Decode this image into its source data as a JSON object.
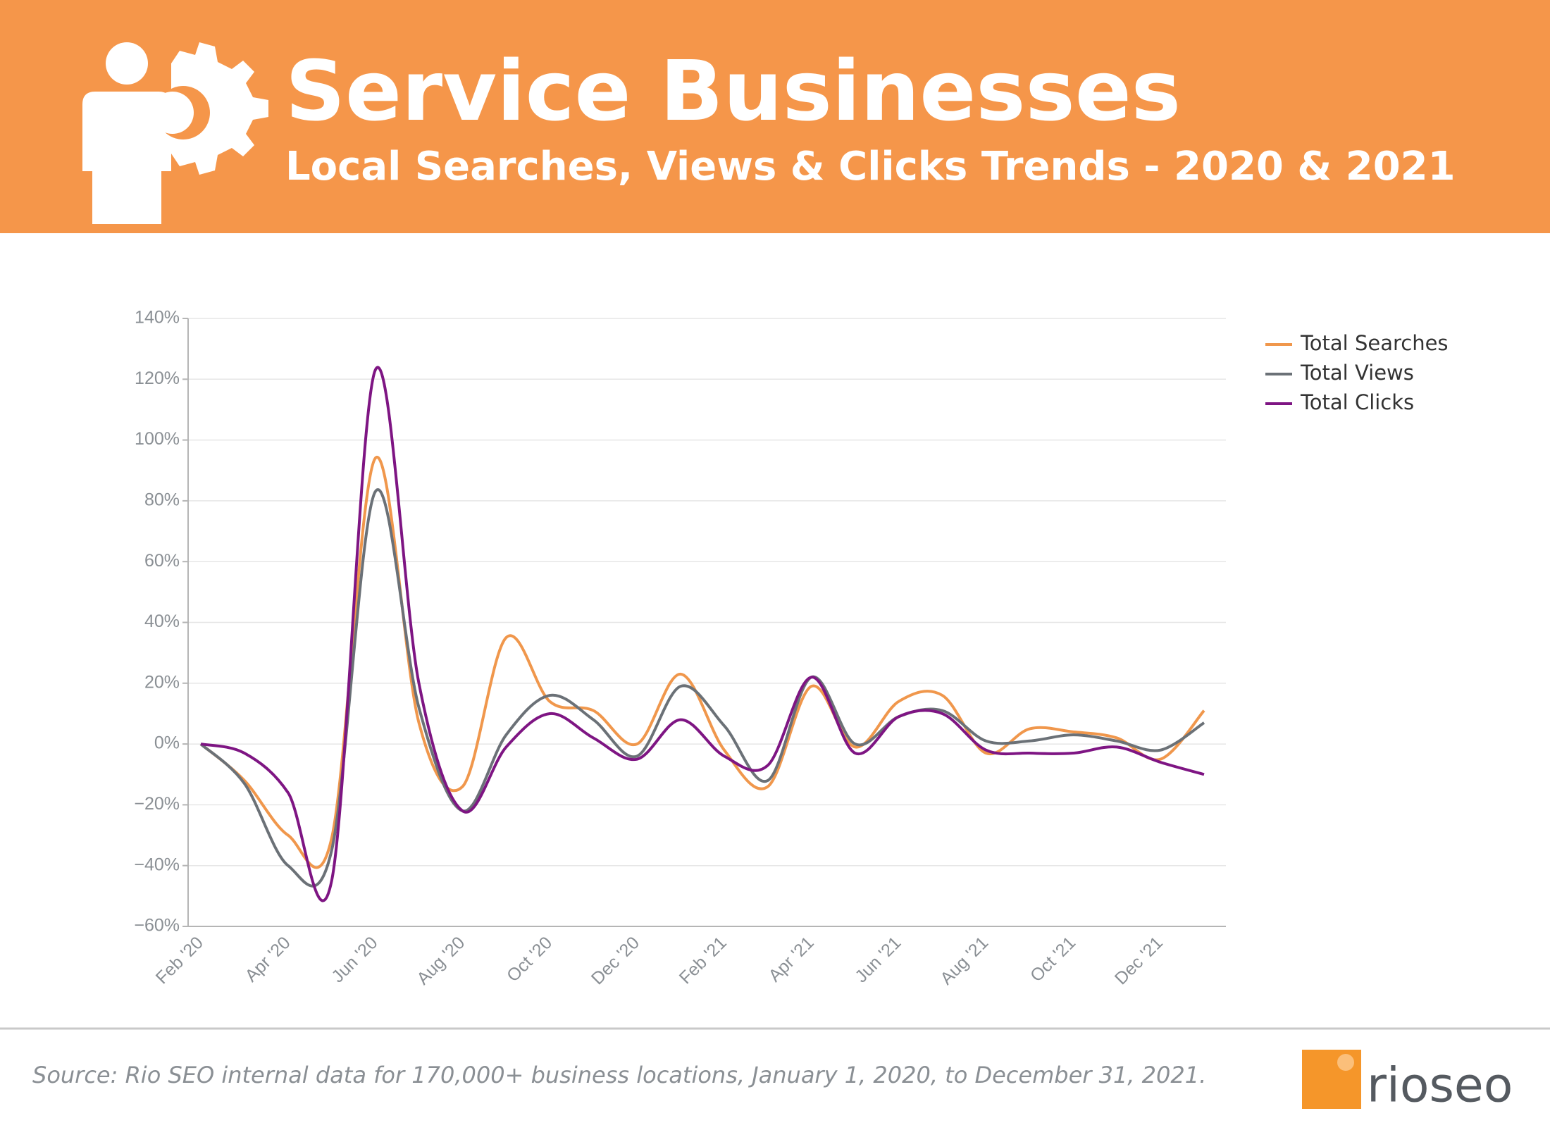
{
  "chart_data": {
    "type": "line",
    "title": "Service Businesses",
    "subtitle": "Local Searches, Views & Clicks Trends - 2020 & 2021",
    "source": "Source: Rio SEO internal data for 170,000+ business locations, January 1, 2020, to December 31, 2021.",
    "categories": [
      "Feb '20",
      null,
      "Apr '20",
      null,
      "Jun '20",
      null,
      "Aug '20",
      null,
      "Oct '20",
      null,
      "Dec '20",
      null,
      "Feb '21",
      null,
      "Apr '21",
      null,
      "Jun '21",
      null,
      "Aug '21",
      null,
      "Oct '21",
      null,
      "Dec '21",
      null
    ],
    "series": [
      {
        "name": "Total Searches",
        "color": "#f0974c",
        "values": [
          0,
          -12,
          -30,
          -31,
          94,
          7,
          -14,
          35,
          14,
          11,
          0,
          23,
          -2,
          -14,
          19,
          -1,
          14,
          16,
          -3,
          5,
          4,
          2,
          -5,
          11
        ]
      },
      {
        "name": "Total Views",
        "color": "#6b7177",
        "values": [
          0,
          -13,
          -40,
          -35,
          83,
          12,
          -22,
          3,
          16,
          8,
          -4,
          19,
          6,
          -12,
          22,
          0,
          9,
          11,
          1,
          1,
          3,
          1,
          -2,
          7
        ]
      },
      {
        "name": "Total Clicks",
        "color": "#7e1583",
        "values": [
          0,
          -3,
          -16,
          -45,
          123,
          20,
          -22,
          -1,
          10,
          2,
          -5,
          8,
          -4,
          -7,
          22,
          -3,
          9,
          10,
          -2,
          -3,
          -3,
          -1,
          -6,
          -10
        ]
      }
    ],
    "ylim": [
      -60,
      140
    ],
    "yticks": [
      {
        "value": -60,
        "label": "−60%"
      },
      {
        "value": -40,
        "label": "−40%"
      },
      {
        "value": -20,
        "label": "−20%"
      },
      {
        "value": 0,
        "label": "0%"
      },
      {
        "value": 20,
        "label": "20%"
      },
      {
        "value": 40,
        "label": "40%"
      },
      {
        "value": 60,
        "label": "60%"
      },
      {
        "value": 80,
        "label": "80%"
      },
      {
        "value": 100,
        "label": "100%"
      },
      {
        "value": 120,
        "label": "120%"
      },
      {
        "value": 140,
        "label": "140%"
      }
    ],
    "grid": true,
    "legend": "right"
  },
  "logo": {
    "text": "rioseo"
  }
}
